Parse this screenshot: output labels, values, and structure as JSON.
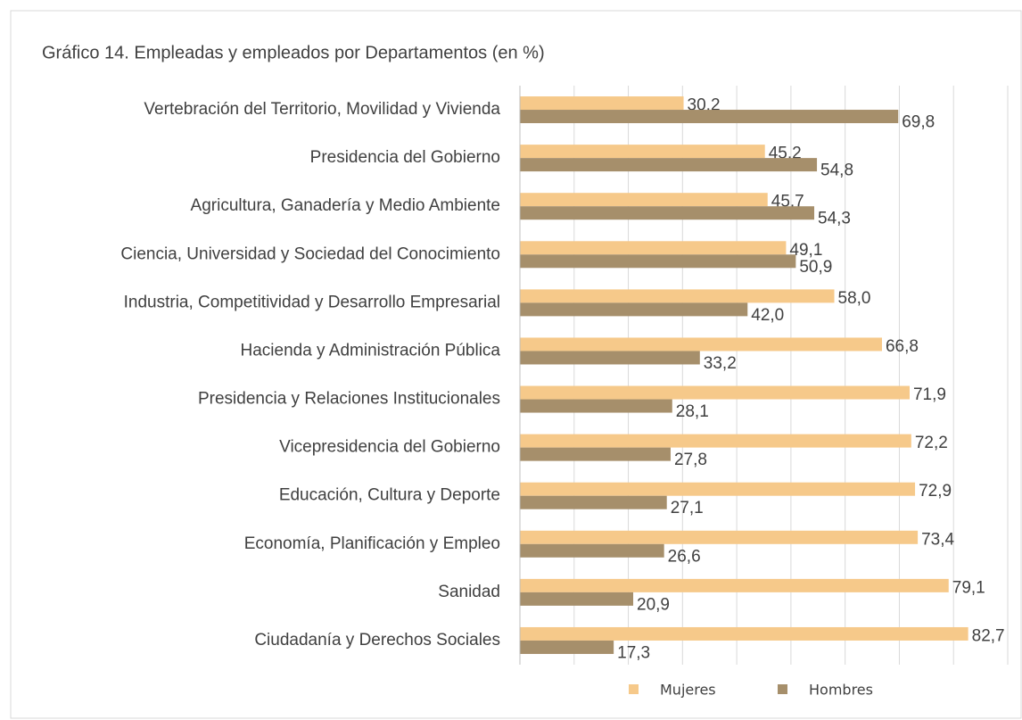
{
  "chart_data": {
    "type": "bar",
    "orientation": "horizontal",
    "title": "Gráfico 14. Empleadas y empleados por Departamentos (en %)",
    "categories": [
      "Vertebración del Territorio, Movilidad y Vivienda",
      "Presidencia del Gobierno",
      "Agricultura, Ganadería y Medio Ambiente",
      "Ciencia, Universidad y Sociedad del Conocimiento",
      "Industria, Competitividad y Desarrollo Empresarial",
      "Hacienda y Administración Pública",
      "Presidencia y Relaciones Institucionales",
      "Vicepresidencia del Gobierno",
      "Educación, Cultura y Deporte",
      "Economía, Planificación y Empleo",
      "Sanidad",
      "Ciudadanía y Derechos Sociales"
    ],
    "series": [
      {
        "name": "Mujeres",
        "color": "#f6c98a",
        "values": [
          30.2,
          45.2,
          45.7,
          49.1,
          58.0,
          66.8,
          71.9,
          72.2,
          72.9,
          73.4,
          79.1,
          82.7
        ],
        "value_labels": [
          "30,2",
          "45,2",
          "45,7",
          "49,1",
          "58,0",
          "66,8",
          "71,9",
          "72,2",
          "72,9",
          "73,4",
          "79,1",
          "82,7"
        ]
      },
      {
        "name": "Hombres",
        "color": "#a68f6b",
        "values": [
          69.8,
          54.8,
          54.3,
          50.9,
          42.0,
          33.2,
          28.1,
          27.8,
          27.1,
          26.6,
          20.9,
          17.3
        ],
        "value_labels": [
          "69,8",
          "54,8",
          "54,3",
          "50,9",
          "42,0",
          "33,2",
          "28,1",
          "27,8",
          "27,1",
          "26,6",
          "20,9",
          "17,3"
        ]
      }
    ],
    "xlim": [
      0,
      90
    ],
    "xticks": [
      0,
      10,
      20,
      30,
      40,
      50,
      60,
      70,
      80,
      90
    ],
    "grid": true,
    "legend": "bottom"
  }
}
